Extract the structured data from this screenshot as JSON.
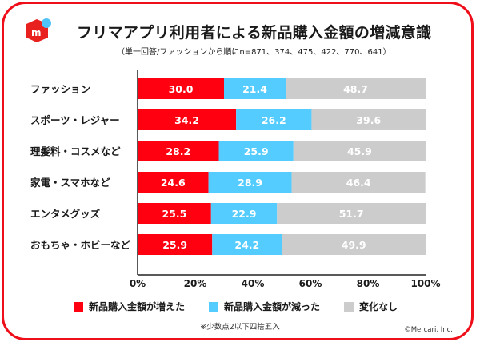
{
  "header": {
    "title": "フリマアプリ利用者による新品購入金額の増減意識",
    "subtitle": "（単一回答/ファッションから順にn=871、374、475、422、770、641）"
  },
  "colors": {
    "frame": "#ef0f1a",
    "increased": "#ff0011",
    "decreased": "#55ccff",
    "no_change": "#cccccc",
    "logo_red": "#e8201e",
    "logo_dot": "#4fc3f7"
  },
  "chart_data": {
    "type": "bar",
    "orientation": "horizontal",
    "stacked": true,
    "title": "フリマアプリ利用者による新品購入金額の増減意識",
    "subtitle": "（単一回答/ファッションから順にn=871、374、475、422、770、641）",
    "categories": [
      "ファッション",
      "スポーツ・レジャー",
      "理髪料・コスメなど",
      "家電・スマホなど",
      "エンタメグッズ",
      "おもちゃ・ホビーなど"
    ],
    "series": [
      {
        "name": "新品購入金額が増えた",
        "values": [
          30.0,
          34.2,
          28.2,
          24.6,
          25.5,
          25.9
        ]
      },
      {
        "name": "新品購入金額が減った",
        "values": [
          21.4,
          26.2,
          25.9,
          28.9,
          22.9,
          24.2
        ]
      },
      {
        "name": "変化なし",
        "values": [
          48.7,
          39.6,
          45.9,
          46.4,
          51.7,
          49.9
        ]
      }
    ],
    "xlim": [
      0,
      100
    ],
    "xticks": [
      "0%",
      "20%",
      "40%",
      "60%",
      "80%",
      "100%"
    ],
    "xlabel": "",
    "ylabel": "",
    "grid": false,
    "legend": "bottom"
  },
  "legend": {
    "items": [
      "新品購入金額が増えた",
      "新品購入金額が減った",
      "変化なし"
    ]
  },
  "footer": {
    "note": "※少数点2以下四捨五入",
    "copyright": "©Mercari, Inc."
  }
}
